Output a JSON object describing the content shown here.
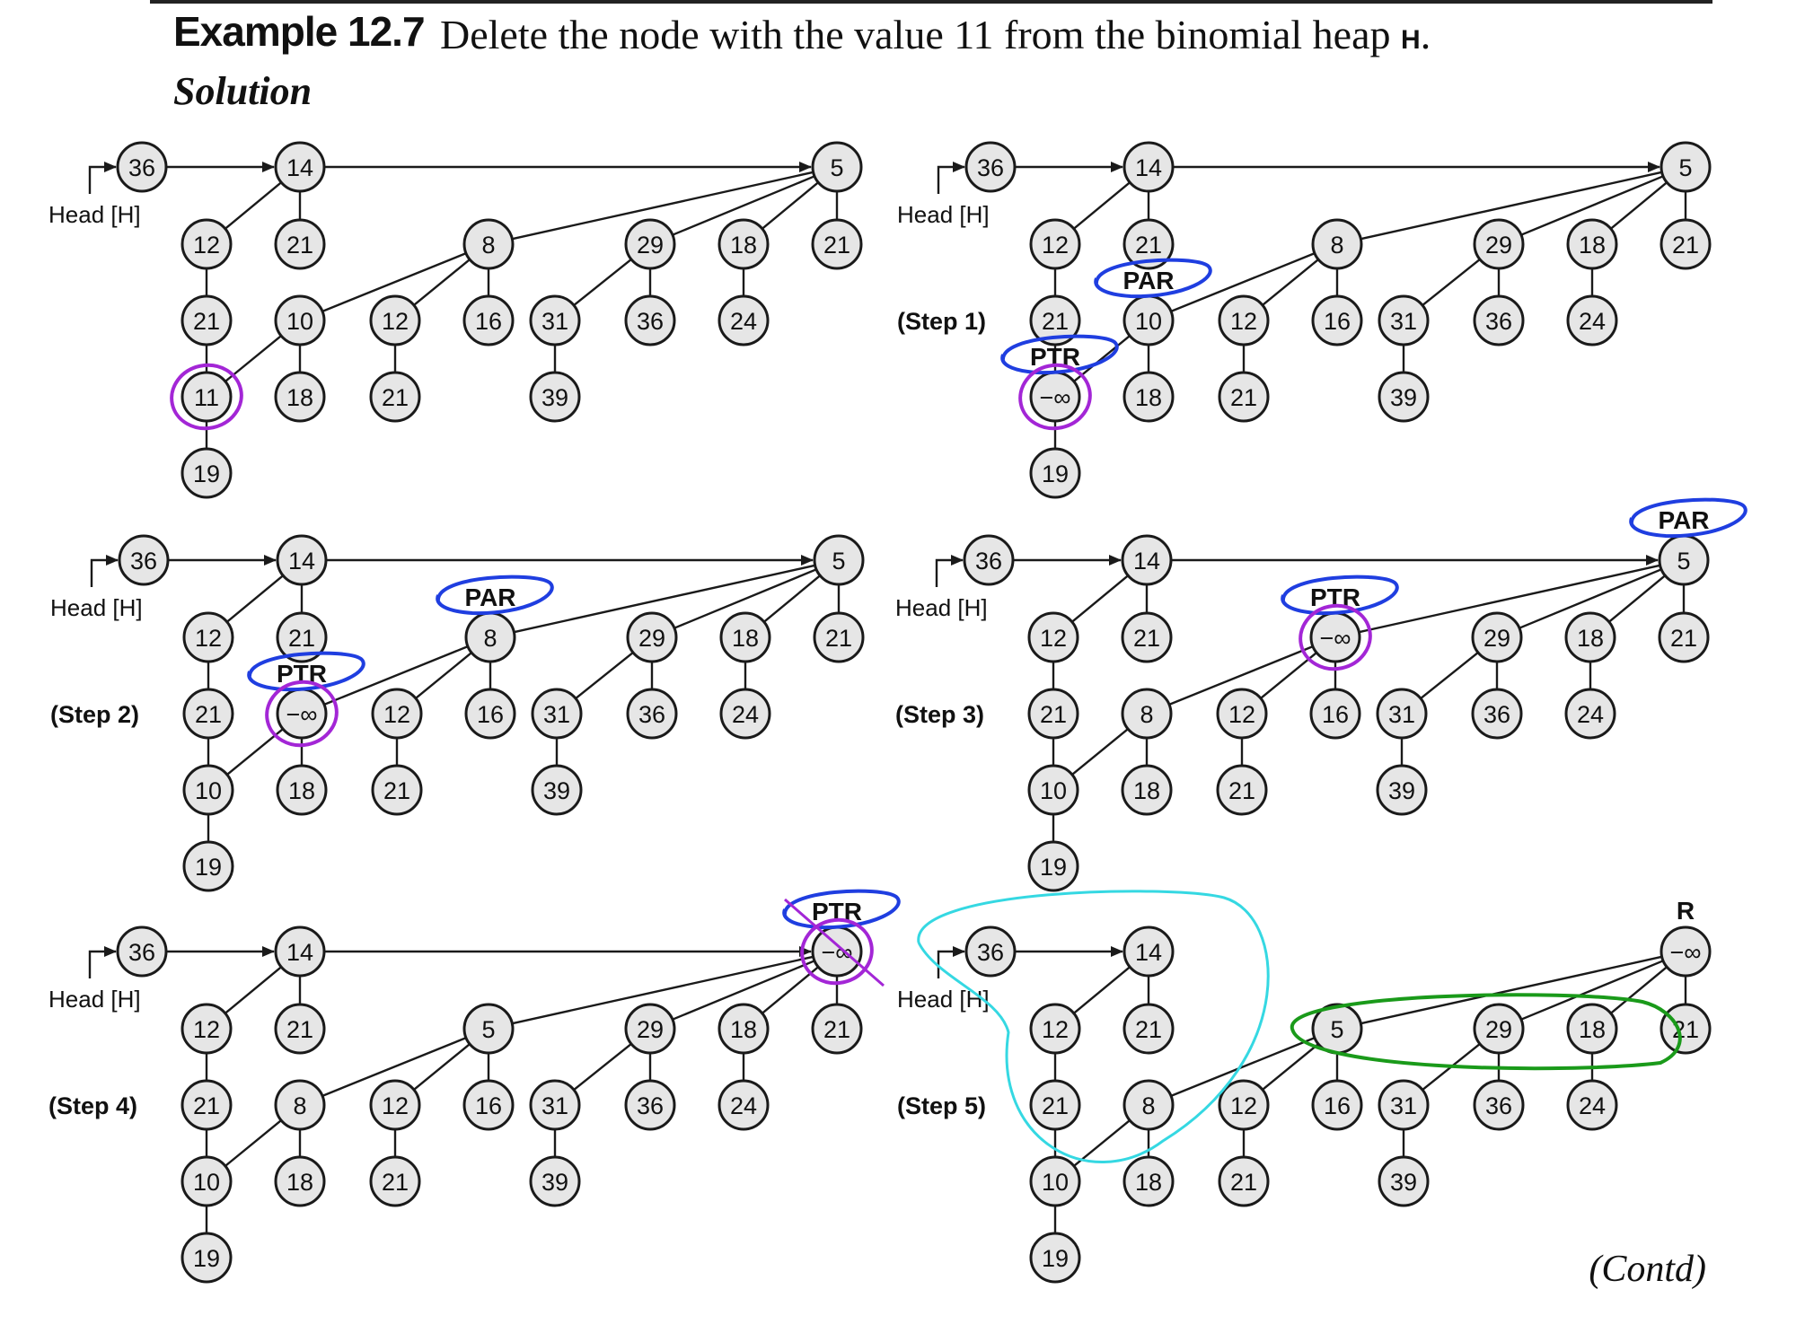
{
  "header": {
    "example_label": "Example 12.7",
    "statement_prefix": "Delete the node with the value 11 from the binomial heap ",
    "heap_name": "H",
    "statement_suffix": ".",
    "solution_label": "Solution",
    "contd_label": "(Contd)"
  },
  "head_label": "Head [H]",
  "colors": {
    "node_fill": "#e6e6e6",
    "ink": "#1a1a1a",
    "purple_mark": "#a326d6",
    "blue_mark": "#1f3ee0",
    "cyan_mark": "#35d8e2",
    "green_mark": "#1a9a1a"
  },
  "panels": [
    {
      "id": "initial",
      "step_label": "",
      "roots": [
        "36",
        "14",
        "5"
      ],
      "nodes": [
        {
          "id": "a36",
          "v": "36"
        },
        {
          "id": "a14",
          "v": "14"
        },
        {
          "id": "a5",
          "v": "5"
        },
        {
          "id": "a12",
          "v": "12"
        },
        {
          "id": "a21a",
          "v": "21"
        },
        {
          "id": "a21b",
          "v": "21"
        },
        {
          "id": "a11",
          "v": "11"
        },
        {
          "id": "a19",
          "v": "19"
        },
        {
          "id": "a8",
          "v": "8"
        },
        {
          "id": "a29",
          "v": "29"
        },
        {
          "id": "a18",
          "v": "18"
        },
        {
          "id": "a21r",
          "v": "21"
        },
        {
          "id": "a10",
          "v": "10"
        },
        {
          "id": "a12b",
          "v": "12"
        },
        {
          "id": "a16",
          "v": "16"
        },
        {
          "id": "a31",
          "v": "31"
        },
        {
          "id": "a36b",
          "v": "36"
        },
        {
          "id": "a24",
          "v": "24"
        },
        {
          "id": "a18b",
          "v": "18"
        },
        {
          "id": "a21c",
          "v": "21"
        },
        {
          "id": "a39",
          "v": "39"
        }
      ],
      "annotations": []
    },
    {
      "id": "step1",
      "step_label": "(Step 1)",
      "roots": [
        "36",
        "14",
        "5"
      ],
      "nodes": [
        {
          "id": "b36",
          "v": "36"
        },
        {
          "id": "b14",
          "v": "14"
        },
        {
          "id": "b5",
          "v": "5"
        },
        {
          "id": "b12",
          "v": "12"
        },
        {
          "id": "b21a",
          "v": "21"
        },
        {
          "id": "b21b",
          "v": "21"
        },
        {
          "id": "bneg",
          "v": "−∞"
        },
        {
          "id": "b19",
          "v": "19"
        },
        {
          "id": "b8",
          "v": "8"
        },
        {
          "id": "b29",
          "v": "29"
        },
        {
          "id": "b18",
          "v": "18"
        },
        {
          "id": "b21r",
          "v": "21"
        },
        {
          "id": "b10",
          "v": "10"
        },
        {
          "id": "b12b",
          "v": "12"
        },
        {
          "id": "b16",
          "v": "16"
        },
        {
          "id": "b31",
          "v": "31"
        },
        {
          "id": "b36b",
          "v": "36"
        },
        {
          "id": "b24",
          "v": "24"
        },
        {
          "id": "b18b",
          "v": "18"
        },
        {
          "id": "b21c",
          "v": "21"
        },
        {
          "id": "b39",
          "v": "39"
        }
      ],
      "annotations": [
        "PAR",
        "PTR"
      ]
    },
    {
      "id": "step2",
      "step_label": "(Step 2)",
      "roots": [
        "36",
        "14",
        "5"
      ],
      "nodes": [
        {
          "id": "c36",
          "v": "36"
        },
        {
          "id": "c14",
          "v": "14"
        },
        {
          "id": "c5",
          "v": "5"
        },
        {
          "id": "c12",
          "v": "12"
        },
        {
          "id": "c21a",
          "v": "21"
        },
        {
          "id": "c21b",
          "v": "21"
        },
        {
          "id": "c10",
          "v": "10"
        },
        {
          "id": "c19",
          "v": "19"
        },
        {
          "id": "c8",
          "v": "8"
        },
        {
          "id": "c29",
          "v": "29"
        },
        {
          "id": "c18",
          "v": "18"
        },
        {
          "id": "c21r",
          "v": "21"
        },
        {
          "id": "cneg",
          "v": "−∞"
        },
        {
          "id": "c12b",
          "v": "12"
        },
        {
          "id": "c16",
          "v": "16"
        },
        {
          "id": "c31",
          "v": "31"
        },
        {
          "id": "c36b",
          "v": "36"
        },
        {
          "id": "c24",
          "v": "24"
        },
        {
          "id": "c18b",
          "v": "18"
        },
        {
          "id": "c21c",
          "v": "21"
        },
        {
          "id": "c39",
          "v": "39"
        }
      ],
      "annotations": [
        "PAR",
        "PTR"
      ]
    },
    {
      "id": "step3",
      "step_label": "(Step 3)",
      "roots": [
        "36",
        "14",
        "5"
      ],
      "nodes": [
        {
          "id": "d36",
          "v": "36"
        },
        {
          "id": "d14",
          "v": "14"
        },
        {
          "id": "d5",
          "v": "5"
        },
        {
          "id": "d12",
          "v": "12"
        },
        {
          "id": "d21a",
          "v": "21"
        },
        {
          "id": "d21b",
          "v": "21"
        },
        {
          "id": "d10",
          "v": "10"
        },
        {
          "id": "d19",
          "v": "19"
        },
        {
          "id": "dneg",
          "v": "−∞"
        },
        {
          "id": "d29",
          "v": "29"
        },
        {
          "id": "d18",
          "v": "18"
        },
        {
          "id": "d21r",
          "v": "21"
        },
        {
          "id": "d8",
          "v": "8"
        },
        {
          "id": "d12b",
          "v": "12"
        },
        {
          "id": "d16",
          "v": "16"
        },
        {
          "id": "d31",
          "v": "31"
        },
        {
          "id": "d36b",
          "v": "36"
        },
        {
          "id": "d24",
          "v": "24"
        },
        {
          "id": "d18b",
          "v": "18"
        },
        {
          "id": "d21c",
          "v": "21"
        },
        {
          "id": "d39",
          "v": "39"
        }
      ],
      "annotations": [
        "PTR",
        "PAR"
      ]
    },
    {
      "id": "step4",
      "step_label": "(Step 4)",
      "roots": [
        "36",
        "14",
        "−∞"
      ],
      "nodes": [
        {
          "id": "e36",
          "v": "36"
        },
        {
          "id": "e14",
          "v": "14"
        },
        {
          "id": "eneg",
          "v": "−∞"
        },
        {
          "id": "e12",
          "v": "12"
        },
        {
          "id": "e21a",
          "v": "21"
        },
        {
          "id": "e21b",
          "v": "21"
        },
        {
          "id": "e10",
          "v": "10"
        },
        {
          "id": "e19",
          "v": "19"
        },
        {
          "id": "e5",
          "v": "5"
        },
        {
          "id": "e29",
          "v": "29"
        },
        {
          "id": "e18",
          "v": "18"
        },
        {
          "id": "e21r",
          "v": "21"
        },
        {
          "id": "e8",
          "v": "8"
        },
        {
          "id": "e12b",
          "v": "12"
        },
        {
          "id": "e16",
          "v": "16"
        },
        {
          "id": "e31",
          "v": "31"
        },
        {
          "id": "e36b",
          "v": "36"
        },
        {
          "id": "e24",
          "v": "24"
        },
        {
          "id": "e18b",
          "v": "18"
        },
        {
          "id": "e21c",
          "v": "21"
        },
        {
          "id": "e39",
          "v": "39"
        }
      ],
      "annotations": [
        "PTR"
      ]
    },
    {
      "id": "step5",
      "step_label": "(Step 5)",
      "roots": [
        "36",
        "14"
      ],
      "nodes": [
        {
          "id": "f36",
          "v": "36"
        },
        {
          "id": "f14",
          "v": "14"
        },
        {
          "id": "fneg",
          "v": "−∞"
        },
        {
          "id": "f12",
          "v": "12"
        },
        {
          "id": "f21a",
          "v": "21"
        },
        {
          "id": "f21b",
          "v": "21"
        },
        {
          "id": "f10",
          "v": "10"
        },
        {
          "id": "f19",
          "v": "19"
        },
        {
          "id": "f5",
          "v": "5"
        },
        {
          "id": "f29",
          "v": "29"
        },
        {
          "id": "f18",
          "v": "18"
        },
        {
          "id": "f21r",
          "v": "21"
        },
        {
          "id": "f8",
          "v": "8"
        },
        {
          "id": "f12b",
          "v": "12"
        },
        {
          "id": "f16",
          "v": "16"
        },
        {
          "id": "f31",
          "v": "31"
        },
        {
          "id": "f36b",
          "v": "36"
        },
        {
          "id": "f24",
          "v": "24"
        },
        {
          "id": "f18b",
          "v": "18"
        },
        {
          "id": "f21c",
          "v": "21"
        },
        {
          "id": "f39",
          "v": "39"
        }
      ],
      "annotations": [
        "R"
      ]
    }
  ]
}
